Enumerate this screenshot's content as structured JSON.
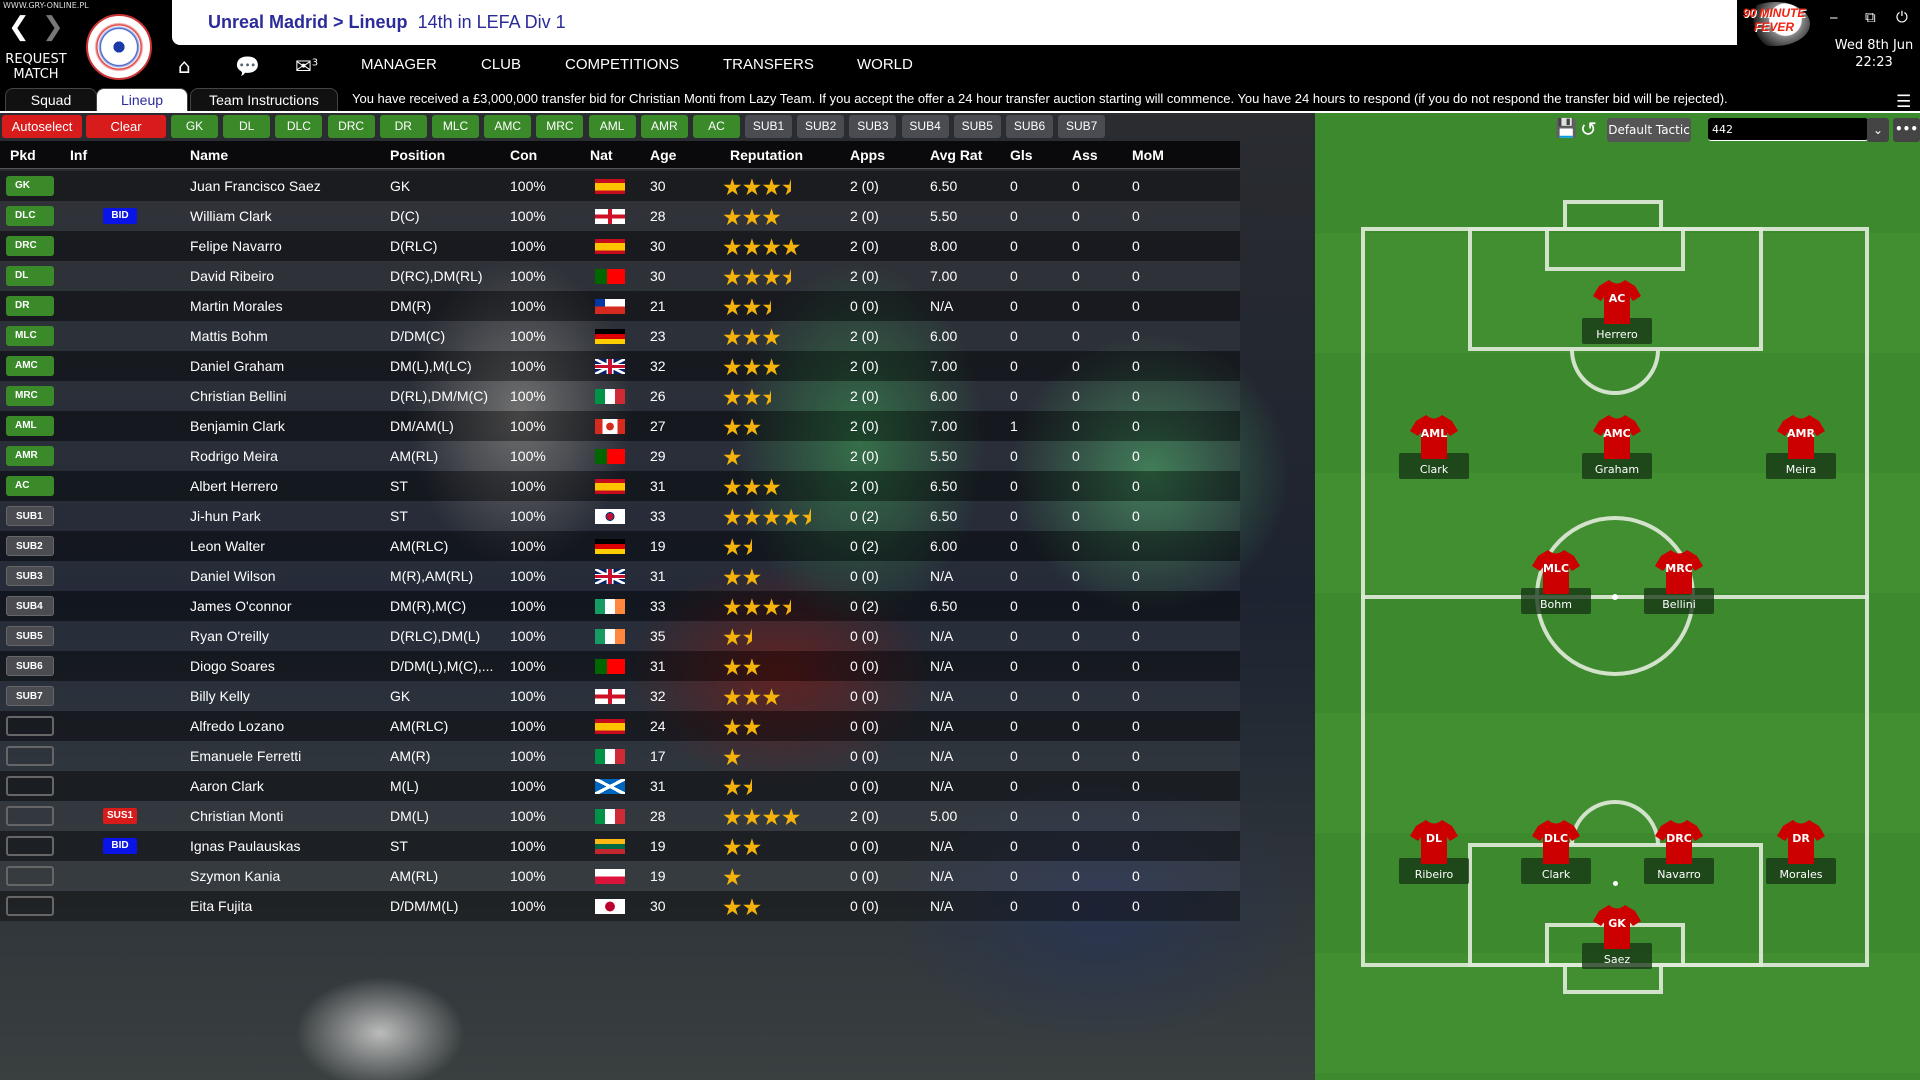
{
  "watermark": "WWW.GRY-ONLINE.PL",
  "header": {
    "request_match": "REQUEST MATCH",
    "club": "Unreal Madrid",
    "sep": " > ",
    "page": "Lineup",
    "standing": "14th in LEFA Div 1",
    "brand": "90 MINUTE FEVER",
    "date": "Wed 8th Jun",
    "time": "22:23",
    "mail_count": "3"
  },
  "nav": [
    "MANAGER",
    "CLUB",
    "COMPETITIONS",
    "TRANSFERS",
    "WORLD"
  ],
  "tabs": [
    "Squad",
    "Lineup",
    "Team Instructions"
  ],
  "message": "You have received a £3,000,000 transfer bid for Christian Monti from Lazy Team.  If you accept the offer a 24 hour transfer auction starting will commence.  You have 24 hours to respond (if you do not respond the transfer bid will be rejected).",
  "buttons": {
    "autoselect": "Autoselect",
    "clear": "Clear",
    "positions": [
      "GK",
      "DL",
      "DLC",
      "DRC",
      "DR",
      "MLC",
      "AMC",
      "MRC",
      "AML",
      "AMR",
      "AC"
    ],
    "subs": [
      "SUB1",
      "SUB2",
      "SUB3",
      "SUB4",
      "SUB5",
      "SUB6",
      "SUB7"
    ]
  },
  "columns": [
    "Pkd",
    "Inf",
    "Name",
    "Position",
    "Con",
    "Nat",
    "Age",
    "Reputation",
    "Apps",
    "Avg Rat",
    "Gls",
    "Ass",
    "MoM"
  ],
  "players": [
    {
      "pkd": "GK",
      "inf": "",
      "name": "Juan Francisco Saez",
      "pos": "GK",
      "con": "100%",
      "nat": "es",
      "age": "30",
      "rep": 3.5,
      "apps": "2 (0)",
      "avg": "6.50",
      "gls": "0",
      "ass": "0",
      "mom": "0"
    },
    {
      "pkd": "DLC",
      "inf": "BID",
      "name": "William Clark",
      "pos": "D(C)",
      "con": "100%",
      "nat": "en",
      "age": "28",
      "rep": 3,
      "apps": "2 (0)",
      "avg": "5.50",
      "gls": "0",
      "ass": "0",
      "mom": "0"
    },
    {
      "pkd": "DRC",
      "inf": "",
      "name": "Felipe Navarro",
      "pos": "D(RLC)",
      "con": "100%",
      "nat": "es",
      "age": "30",
      "rep": 4,
      "apps": "2 (0)",
      "avg": "8.00",
      "gls": "0",
      "ass": "0",
      "mom": "0"
    },
    {
      "pkd": "DL",
      "inf": "",
      "name": "David Ribeiro",
      "pos": "D(RC),DM(RL)",
      "con": "100%",
      "nat": "pt",
      "age": "30",
      "rep": 3.5,
      "apps": "2 (0)",
      "avg": "7.00",
      "gls": "0",
      "ass": "0",
      "mom": "0"
    },
    {
      "pkd": "DR",
      "inf": "",
      "name": "Martin Morales",
      "pos": "DM(R)",
      "con": "100%",
      "nat": "cl",
      "age": "21",
      "rep": 2.5,
      "apps": "0 (0)",
      "avg": "N/A",
      "gls": "0",
      "ass": "0",
      "mom": "0"
    },
    {
      "pkd": "MLC",
      "inf": "",
      "name": "Mattis Bohm",
      "pos": "D/DM(C)",
      "con": "100%",
      "nat": "de",
      "age": "23",
      "rep": 3,
      "apps": "2 (0)",
      "avg": "6.00",
      "gls": "0",
      "ass": "0",
      "mom": "0"
    },
    {
      "pkd": "AMC",
      "inf": "",
      "name": "Daniel Graham",
      "pos": "DM(L),M(LC)",
      "con": "100%",
      "nat": "gb",
      "age": "32",
      "rep": 3,
      "apps": "2 (0)",
      "avg": "7.00",
      "gls": "0",
      "ass": "0",
      "mom": "0"
    },
    {
      "pkd": "MRC",
      "inf": "",
      "name": "Christian Bellini",
      "pos": "D(RL),DM/M(C)",
      "con": "100%",
      "nat": "it",
      "age": "26",
      "rep": 2.5,
      "apps": "2 (0)",
      "avg": "6.00",
      "gls": "0",
      "ass": "0",
      "mom": "0"
    },
    {
      "pkd": "AML",
      "inf": "",
      "name": "Benjamin Clark",
      "pos": "DM/AM(L)",
      "con": "100%",
      "nat": "ca",
      "age": "27",
      "rep": 2,
      "apps": "2 (0)",
      "avg": "7.00",
      "gls": "1",
      "ass": "0",
      "mom": "0"
    },
    {
      "pkd": "AMR",
      "inf": "",
      "name": "Rodrigo Meira",
      "pos": "AM(RL)",
      "con": "100%",
      "nat": "pt",
      "age": "29",
      "rep": 1,
      "apps": "2 (0)",
      "avg": "5.50",
      "gls": "0",
      "ass": "0",
      "mom": "0"
    },
    {
      "pkd": "AC",
      "inf": "",
      "name": "Albert Herrero",
      "pos": "ST",
      "con": "100%",
      "nat": "es",
      "age": "31",
      "rep": 3,
      "apps": "2 (0)",
      "avg": "6.50",
      "gls": "0",
      "ass": "0",
      "mom": "0"
    },
    {
      "pkd": "SUB1",
      "inf": "",
      "name": "Ji-hun Park",
      "pos": "ST",
      "con": "100%",
      "nat": "kr",
      "age": "33",
      "rep": 4.5,
      "apps": "0 (2)",
      "avg": "6.50",
      "gls": "0",
      "ass": "0",
      "mom": "0"
    },
    {
      "pkd": "SUB2",
      "inf": "",
      "name": "Leon Walter",
      "pos": "AM(RLC)",
      "con": "100%",
      "nat": "de",
      "age": "19",
      "rep": 1.5,
      "apps": "0 (2)",
      "avg": "6.00",
      "gls": "0",
      "ass": "0",
      "mom": "0"
    },
    {
      "pkd": "SUB3",
      "inf": "",
      "name": "Daniel Wilson",
      "pos": "M(R),AM(RL)",
      "con": "100%",
      "nat": "gb",
      "age": "31",
      "rep": 2,
      "apps": "0 (0)",
      "avg": "N/A",
      "gls": "0",
      "ass": "0",
      "mom": "0"
    },
    {
      "pkd": "SUB4",
      "inf": "",
      "name": "James O'connor",
      "pos": "DM(R),M(C)",
      "con": "100%",
      "nat": "ie",
      "age": "33",
      "rep": 3.5,
      "apps": "0 (2)",
      "avg": "6.50",
      "gls": "0",
      "ass": "0",
      "mom": "0"
    },
    {
      "pkd": "SUB5",
      "inf": "",
      "name": "Ryan O'reilly",
      "pos": "D(RLC),DM(L)",
      "con": "100%",
      "nat": "ie",
      "age": "35",
      "rep": 1.5,
      "apps": "0 (0)",
      "avg": "N/A",
      "gls": "0",
      "ass": "0",
      "mom": "0"
    },
    {
      "pkd": "SUB6",
      "inf": "",
      "name": "Diogo Soares",
      "pos": "D/DM(L),M(C),...",
      "con": "100%",
      "nat": "pt",
      "age": "31",
      "rep": 2,
      "apps": "0 (0)",
      "avg": "N/A",
      "gls": "0",
      "ass": "0",
      "mom": "0"
    },
    {
      "pkd": "SUB7",
      "inf": "",
      "name": "Billy Kelly",
      "pos": "GK",
      "con": "100%",
      "nat": "en",
      "age": "32",
      "rep": 3,
      "apps": "0 (0)",
      "avg": "N/A",
      "gls": "0",
      "ass": "0",
      "mom": "0"
    },
    {
      "pkd": "",
      "inf": "",
      "name": "Alfredo Lozano",
      "pos": "AM(RLC)",
      "con": "100%",
      "nat": "es",
      "age": "24",
      "rep": 2,
      "apps": "0 (0)",
      "avg": "N/A",
      "gls": "0",
      "ass": "0",
      "mom": "0"
    },
    {
      "pkd": "",
      "inf": "",
      "name": "Emanuele Ferretti",
      "pos": "AM(R)",
      "con": "100%",
      "nat": "it",
      "age": "17",
      "rep": 1,
      "apps": "0 (0)",
      "avg": "N/A",
      "gls": "0",
      "ass": "0",
      "mom": "0"
    },
    {
      "pkd": "",
      "inf": "",
      "name": "Aaron Clark",
      "pos": "M(L)",
      "con": "100%",
      "nat": "sct",
      "age": "31",
      "rep": 1.5,
      "apps": "0 (0)",
      "avg": "N/A",
      "gls": "0",
      "ass": "0",
      "mom": "0"
    },
    {
      "pkd": "",
      "inf": "SUS1",
      "name": "Christian Monti",
      "pos": "DM(L)",
      "con": "100%",
      "nat": "it",
      "age": "28",
      "rep": 4,
      "apps": "2 (0)",
      "avg": "5.00",
      "gls": "0",
      "ass": "0",
      "mom": "0"
    },
    {
      "pkd": "",
      "inf": "BID",
      "name": "Ignas Paulauskas",
      "pos": "ST",
      "con": "100%",
      "nat": "lt",
      "age": "19",
      "rep": 2,
      "apps": "0 (0)",
      "avg": "N/A",
      "gls": "0",
      "ass": "0",
      "mom": "0"
    },
    {
      "pkd": "",
      "inf": "",
      "name": "Szymon Kania",
      "pos": "AM(RL)",
      "con": "100%",
      "nat": "pl",
      "age": "19",
      "rep": 1,
      "apps": "0 (0)",
      "avg": "N/A",
      "gls": "0",
      "ass": "0",
      "mom": "0"
    },
    {
      "pkd": "",
      "inf": "",
      "name": "Eita Fujita",
      "pos": "D/DM/M(L)",
      "con": "100%",
      "nat": "jp",
      "age": "30",
      "rep": 2,
      "apps": "0 (0)",
      "avg": "N/A",
      "gls": "0",
      "ass": "0",
      "mom": "0"
    }
  ],
  "tactic": {
    "default_label": "Default Tactic",
    "formation": "442"
  },
  "pitch": [
    {
      "role": "AC",
      "name": "Herrero"
    },
    {
      "role": "AML",
      "name": "Clark"
    },
    {
      "role": "AMC",
      "name": "Graham"
    },
    {
      "role": "AMR",
      "name": "Meira"
    },
    {
      "role": "MLC",
      "name": "Bohm"
    },
    {
      "role": "MRC",
      "name": "Bellini"
    },
    {
      "role": "DL",
      "name": "Ribeiro"
    },
    {
      "role": "DLC",
      "name": "Clark"
    },
    {
      "role": "DRC",
      "name": "Navarro"
    },
    {
      "role": "DR",
      "name": "Morales"
    },
    {
      "role": "GK",
      "name": "Saez"
    }
  ],
  "colors": {
    "accent": "#2b2b9a",
    "starter": "#3a8a2a",
    "danger": "#d81c1c",
    "bid": "#0a14e6",
    "star": "#f4b20a",
    "shirt": "#cc0000"
  }
}
